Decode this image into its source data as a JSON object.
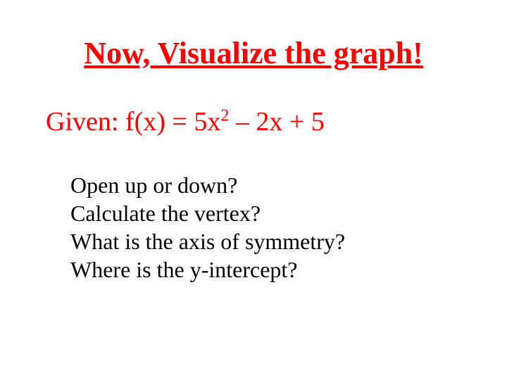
{
  "title": {
    "text": "Now, Visualize the graph!",
    "color": "#ff0000",
    "fontsize": 44,
    "underline": true,
    "bold": true
  },
  "given": {
    "prefix": "Given:  f(x) = 5x",
    "exponent": "2",
    "suffix": " – 2x + 5",
    "color": "#ff0000",
    "fontsize": 38
  },
  "questions": {
    "items": [
      "Open up or down?",
      "Calculate the vertex?",
      "What is the axis of symmetry?",
      "Where is the y-intercept?"
    ],
    "color": "#000000",
    "fontsize": 32
  },
  "background_color": "#ffffff"
}
